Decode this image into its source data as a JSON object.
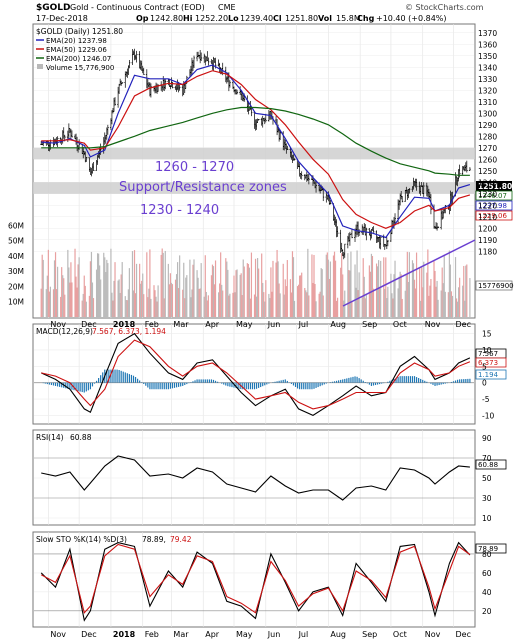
{
  "header": {
    "symbol": "$GOLD",
    "name": "Gold - Continuous Contract (EOD)",
    "exchange": "CME",
    "date": "17-Dec-2018",
    "op_label": "Op",
    "op": "1242.80",
    "hi_label": "Hi",
    "hi": "1252.20",
    "lo_label": "Lo",
    "lo": "1239.40",
    "cl_label": "Cl",
    "cl": "1251.80",
    "vol_label": "Vol",
    "vol": "15.8M",
    "chg_label": "Chg",
    "chg": "+10.40 (+0.84%)",
    "watermark": "© StockCharts.com"
  },
  "legend": {
    "symbol_line": "$GOLD (Daily) 1251.80",
    "ema20": "EMA(20) 1237.98",
    "ema50": "EMA(50) 1229.06",
    "ema200": "EMA(200) 1246.07",
    "volume": "Volume 15,776,900"
  },
  "annotations": {
    "zone_upper": "1260 - 1270",
    "zone_middle": "Support/Resistance zones",
    "zone_lower": "1230 - 1240"
  },
  "price_axis": {
    "ticks": [
      "1370",
      "1360",
      "1350",
      "1340",
      "1330",
      "1320",
      "1310",
      "1300",
      "1290",
      "1280",
      "1270",
      "1260",
      "1250",
      "1240",
      "1230",
      "1220",
      "1210",
      "1200",
      "1190",
      "1180"
    ],
    "badges": [
      "1251.80",
      "1246.07",
      "1237.98",
      "1229.06"
    ]
  },
  "volume_axis": {
    "ticks": [
      "60M",
      "50M",
      "40M",
      "30M",
      "20M",
      "10M"
    ],
    "badge": "15776900"
  },
  "months": [
    "Nov",
    "Dec",
    "2018",
    "Feb",
    "Mar",
    "Apr",
    "May",
    "Jun",
    "Jul",
    "Aug",
    "Sep",
    "Oct",
    "Nov",
    "Dec"
  ],
  "macd": {
    "label_name": "MACD(12,26,9)",
    "label_values": "7.567, 6.373, 1.194",
    "ticks": [
      "15",
      "10",
      "5",
      "0",
      "-5",
      "-10"
    ],
    "badges": [
      "7.567",
      "6.373",
      "1.194"
    ]
  },
  "rsi": {
    "label_name": "RSI(14)",
    "label_value": "60.88",
    "ticks": [
      "90",
      "70",
      "50",
      "30",
      "10"
    ],
    "badge": "60.88"
  },
  "sto": {
    "label_name": "Slow STO %K(14) %D(3)",
    "label_k": "78.89,",
    "label_d": "79.42",
    "ticks": [
      "80",
      "60",
      "40",
      "20"
    ],
    "badge": "78.89"
  },
  "colors": {
    "ema20": "#2222bb",
    "ema50": "#cc1111",
    "ema200": "#116611",
    "zone_fill": "#cfcfcf",
    "annotation": "#6a3fd0",
    "volume_up": "#b9b9b9",
    "volume_down": "#e8a0a0",
    "macd_hist": "#1f77b4"
  },
  "chart_data": [
    {
      "type": "line",
      "panel": "price",
      "x": [
        "2017-10-25",
        "2017-11-08",
        "2017-11-22",
        "2017-12-06",
        "2017-12-12",
        "2017-12-26",
        "2018-01-08",
        "2018-01-24",
        "2018-02-08",
        "2018-02-26",
        "2018-03-12",
        "2018-03-26",
        "2018-04-10",
        "2018-04-24",
        "2018-05-08",
        "2018-05-22",
        "2018-06-06",
        "2018-06-20",
        "2018-07-03",
        "2018-07-17",
        "2018-08-01",
        "2018-08-15",
        "2018-08-28",
        "2018-09-12",
        "2018-09-26",
        "2018-10-10",
        "2018-10-24",
        "2018-11-07",
        "2018-11-13",
        "2018-11-27",
        "2018-12-06",
        "2018-12-17"
      ],
      "series": [
        {
          "name": "$GOLD (Daily)",
          "values": [
            1273,
            1276,
            1284,
            1265,
            1247,
            1278,
            1320,
            1352,
            1320,
            1328,
            1320,
            1352,
            1345,
            1330,
            1315,
            1292,
            1298,
            1270,
            1250,
            1240,
            1225,
            1180,
            1200,
            1195,
            1185,
            1225,
            1238,
            1230,
            1200,
            1222,
            1250,
            1252
          ]
        },
        {
          "name": "EMA(20)",
          "values": [
            1275,
            1274,
            1278,
            1272,
            1262,
            1268,
            1300,
            1333,
            1330,
            1330,
            1325,
            1338,
            1342,
            1335,
            1320,
            1300,
            1298,
            1278,
            1258,
            1244,
            1230,
            1202,
            1198,
            1196,
            1192,
            1210,
            1227,
            1226,
            1215,
            1220,
            1235,
            1238
          ]
        },
        {
          "name": "EMA(50)",
          "values": [
            1276,
            1276,
            1277,
            1274,
            1268,
            1270,
            1288,
            1315,
            1322,
            1326,
            1325,
            1332,
            1337,
            1334,
            1325,
            1312,
            1303,
            1290,
            1275,
            1260,
            1247,
            1225,
            1212,
            1205,
            1200,
            1205,
            1215,
            1220,
            1215,
            1218,
            1226,
            1229
          ]
        },
        {
          "name": "EMA(200)",
          "values": [
            1270,
            1270,
            1270,
            1270,
            1270,
            1271,
            1275,
            1280,
            1285,
            1289,
            1292,
            1296,
            1300,
            1303,
            1305,
            1305,
            1304,
            1302,
            1299,
            1295,
            1290,
            1282,
            1274,
            1267,
            1261,
            1256,
            1253,
            1250,
            1248,
            1247,
            1246,
            1246
          ]
        }
      ],
      "annotations": [
        "1260 - 1270",
        "Support/Resistance zones",
        "1230 - 1240"
      ],
      "ylim": [
        1175,
        1375
      ]
    },
    {
      "type": "bar",
      "panel": "volume",
      "name": "Volume",
      "ylim": [
        0,
        70000000
      ],
      "last_value": 15776900
    },
    {
      "type": "line",
      "panel": "macd",
      "series": [
        {
          "name": "MACD",
          "values": [
            3,
            1,
            -2,
            -8,
            -9,
            2,
            12,
            15,
            9,
            3,
            1,
            6,
            7,
            2,
            -3,
            -7,
            -4,
            -2,
            -8,
            -10,
            -7,
            -4,
            -1,
            -4,
            -3,
            5,
            8,
            4,
            1,
            3,
            6,
            7.567
          ]
        },
        {
          "name": "Signal",
          "values": [
            3,
            2,
            0,
            -5,
            -7,
            -2,
            8,
            13,
            11,
            5,
            2,
            5,
            6,
            3,
            -1,
            -5,
            -4,
            -3,
            -6,
            -8,
            -7,
            -5,
            -3,
            -3,
            -3,
            3,
            6,
            4,
            2,
            3,
            5,
            6.373
          ]
        }
      ],
      "ylim": [
        -12,
        17
      ]
    },
    {
      "type": "line",
      "panel": "rsi",
      "series": [
        {
          "name": "RSI(14)",
          "values": [
            55,
            52,
            56,
            38,
            45,
            62,
            72,
            68,
            52,
            54,
            50,
            60,
            56,
            44,
            40,
            36,
            52,
            42,
            35,
            38,
            38,
            28,
            40,
            42,
            38,
            60,
            58,
            50,
            44,
            56,
            62,
            60.88
          ]
        }
      ],
      "ylim": [
        5,
        95
      ]
    },
    {
      "type": "line",
      "panel": "sto",
      "series": [
        {
          "name": "%K",
          "values": [
            60,
            45,
            85,
            10,
            20,
            85,
            92,
            88,
            25,
            62,
            45,
            82,
            70,
            30,
            25,
            12,
            80,
            50,
            20,
            40,
            45,
            15,
            70,
            50,
            30,
            88,
            90,
            40,
            15,
            70,
            92,
            78.89
          ]
        },
        {
          "name": "%D",
          "values": [
            58,
            50,
            78,
            18,
            25,
            78,
            90,
            85,
            35,
            58,
            48,
            78,
            72,
            35,
            28,
            18,
            72,
            52,
            25,
            38,
            44,
            20,
            62,
            52,
            34,
            82,
            88,
            45,
            22,
            62,
            88,
            79.42
          ]
        }
      ],
      "ylim": [
        5,
        100
      ]
    }
  ]
}
